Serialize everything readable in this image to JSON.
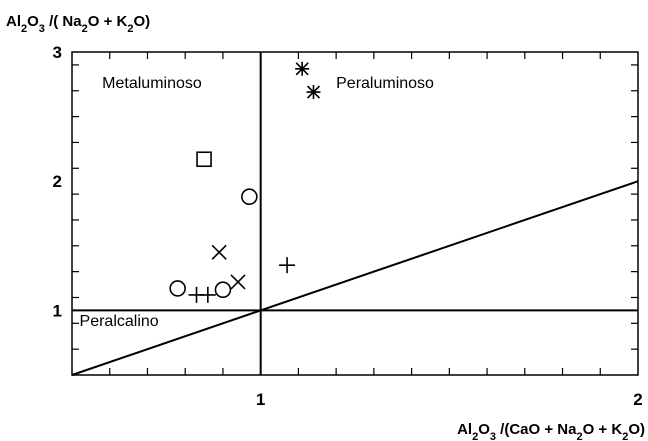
{
  "chart_data": {
    "type": "scatter",
    "title": "",
    "xlabel": {
      "parts": [
        [
          "Al",
          "n"
        ],
        [
          "2",
          "s"
        ],
        [
          "O",
          "n"
        ],
        [
          "3",
          "s"
        ],
        [
          " /(CaO + Na",
          "n"
        ],
        [
          "2",
          "s"
        ],
        [
          "O + K",
          "n"
        ],
        [
          "2",
          "s"
        ],
        [
          "O)",
          "n"
        ]
      ]
    },
    "ylabel": {
      "parts": [
        [
          "Al",
          "n"
        ],
        [
          "2",
          "s"
        ],
        [
          "O",
          "n"
        ],
        [
          "3",
          "s"
        ],
        [
          " /( Na",
          "n"
        ],
        [
          "2",
          "s"
        ],
        [
          "O + K",
          "n"
        ],
        [
          "2",
          "s"
        ],
        [
          "O)",
          "n"
        ]
      ]
    },
    "xlim": [
      0.5,
      2.0
    ],
    "ylim": [
      0.5,
      3.0
    ],
    "x_ticks": [
      {
        "value": 1,
        "label": "1"
      },
      {
        "value": 2,
        "label": "2"
      }
    ],
    "y_ticks": [
      {
        "value": 1,
        "label": "1"
      },
      {
        "value": 2,
        "label": "2"
      },
      {
        "value": 3,
        "label": "3"
      }
    ],
    "x_minor_step": 0.1,
    "y_minor_step": 0.2,
    "grid": false,
    "regions": [
      {
        "label": "Metaluminoso",
        "x": 0.58,
        "y": 2.72
      },
      {
        "label": "Peraluminoso",
        "x": 1.2,
        "y": 2.72
      },
      {
        "label": "Peralcalino",
        "x": 0.52,
        "y": 0.88
      }
    ],
    "reference_lines": [
      {
        "name": "vertical",
        "x": [
          1.0,
          1.0
        ],
        "y": [
          0.5,
          3.0
        ]
      },
      {
        "name": "horizontal",
        "x": [
          0.5,
          2.0
        ],
        "y": [
          1.0,
          1.0
        ]
      },
      {
        "name": "diagonal",
        "x": [
          0.5,
          2.0
        ],
        "y": [
          0.5,
          2.0
        ]
      }
    ],
    "series": [
      {
        "marker": "square",
        "points": [
          [
            0.85,
            2.17
          ]
        ]
      },
      {
        "marker": "circle",
        "points": [
          [
            0.97,
            1.88
          ],
          [
            0.78,
            1.17
          ],
          [
            0.9,
            1.16
          ]
        ]
      },
      {
        "marker": "x",
        "points": [
          [
            0.89,
            1.45
          ],
          [
            0.94,
            1.22
          ]
        ]
      },
      {
        "marker": "plus",
        "points": [
          [
            0.83,
            1.12
          ],
          [
            0.86,
            1.12
          ],
          [
            1.07,
            1.35
          ]
        ]
      },
      {
        "marker": "asterisk",
        "points": [
          [
            1.11,
            2.87
          ],
          [
            1.14,
            2.69
          ]
        ]
      }
    ]
  }
}
